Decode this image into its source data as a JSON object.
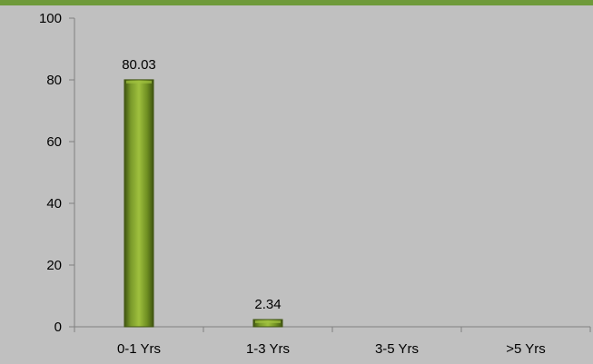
{
  "chart_data": {
    "type": "bar",
    "title": "",
    "xlabel": "",
    "ylabel": "",
    "categories": [
      "0-1 Yrs",
      "1-3 Yrs",
      "3-5 Yrs",
      ">5 Yrs"
    ],
    "values": [
      80.03,
      2.34,
      0,
      0
    ],
    "data_labels": [
      "80.03",
      "2.34",
      "",
      ""
    ],
    "ylim": [
      0,
      100
    ],
    "yticks": [
      0,
      20,
      40,
      60,
      80,
      100
    ],
    "ytick_labels": [
      "0",
      "20",
      "40",
      "60",
      "80",
      "100"
    ],
    "grid": false,
    "legend": "none",
    "colors": {
      "background": "#c0c0c0",
      "bar": "#6f8f22",
      "bar_highlight": "#9fc03e",
      "bar_shadow": "#3f5410",
      "axis": "#808080",
      "header_band": "#6f9a3a"
    }
  }
}
